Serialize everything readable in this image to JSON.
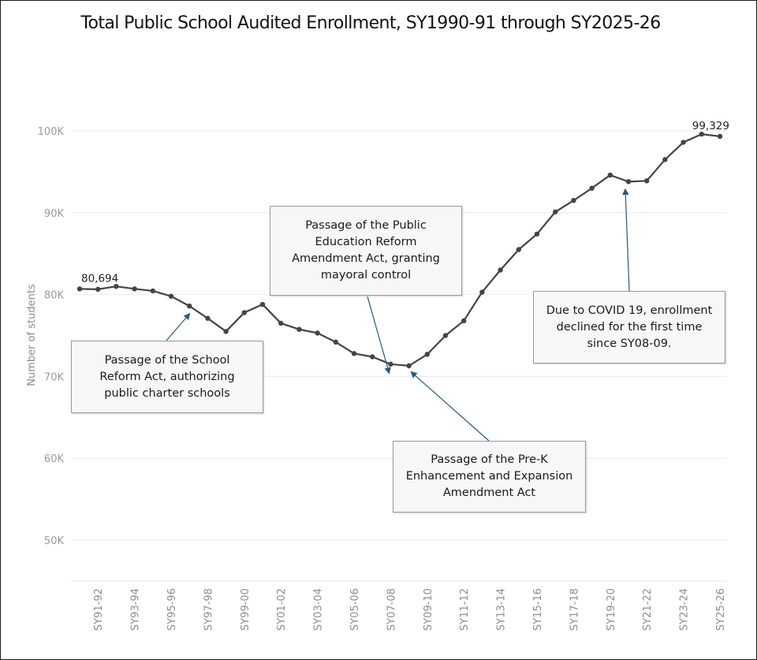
{
  "chart_data": {
    "type": "line",
    "title": "Total Public School Audited Enrollment, SY1990-91 through SY2025-26",
    "ylabel": "Number of students",
    "xlabel": "",
    "ylim": [
      45000,
      104000
    ],
    "y_ticks": [
      50000,
      60000,
      70000,
      80000,
      90000,
      100000
    ],
    "y_tick_labels": [
      "50K",
      "60K",
      "70K",
      "80K",
      "90K",
      "100K"
    ],
    "x": [
      "SY90-91",
      "SY91-92",
      "SY92-93",
      "SY93-94",
      "SY94-95",
      "SY95-96",
      "SY96-97",
      "SY97-98",
      "SY98-99",
      "SY99-00",
      "SY00-01",
      "SY01-02",
      "SY02-03",
      "SY03-04",
      "SY04-05",
      "SY05-06",
      "SY06-07",
      "SY07-08",
      "SY08-09",
      "SY09-10",
      "SY10-11",
      "SY11-12",
      "SY12-13",
      "SY13-14",
      "SY14-15",
      "SY15-16",
      "SY16-17",
      "SY17-18",
      "SY18-19",
      "SY19-20",
      "SY20-21",
      "SY21-22",
      "SY22-23",
      "SY23-24",
      "SY24-25",
      "SY25-26"
    ],
    "x_tick_labels": [
      "SY91-92",
      "SY93-94",
      "SY95-96",
      "SY97-98",
      "SY99-00",
      "SY01-02",
      "SY03-04",
      "SY05-06",
      "SY07-08",
      "SY09-10",
      "SY11-12",
      "SY13-14",
      "SY15-16",
      "SY17-18",
      "SY19-20",
      "SY21-22",
      "SY23-24",
      "SY25-26"
    ],
    "series": [
      {
        "name": "",
        "values": [
          80694,
          80650,
          81000,
          80700,
          80450,
          79800,
          78600,
          77100,
          75500,
          77800,
          78800,
          76500,
          75750,
          75300,
          74200,
          72800,
          72400,
          71500,
          71300,
          72700,
          75000,
          76800,
          80300,
          83000,
          85500,
          87400,
          90100,
          91500,
          93000,
          94600,
          93800,
          93900,
          96500,
          98600,
          99600,
          99329
        ]
      }
    ],
    "data_labels": [
      {
        "x": "SY90-91",
        "text": "80,694"
      },
      {
        "x": "SY25-26",
        "text": "99,329"
      }
    ],
    "grid": true,
    "legend": "none",
    "line_color": "#444444",
    "annotation_color": "#1f5c87"
  },
  "annotations": [
    {
      "name": "annotation-school-reform-act",
      "text": "Passage of the School Reform Act, authorizing public charter schools",
      "target": "SY96-97"
    },
    {
      "name": "annotation-public-education-reform",
      "text": "Passage of the Public Education Reform Amendment Act, granting mayoral control",
      "target": "SY07-08"
    },
    {
      "name": "annotation-prek-enhancement",
      "text": "Passage of the Pre-K Enhancement and Expansion Amendment Act",
      "target": "SY08-09"
    },
    {
      "name": "annotation-covid",
      "text": "Due to COVID 19, enrollment declined for the first time since SY08-09.",
      "target": "SY20-21"
    }
  ]
}
